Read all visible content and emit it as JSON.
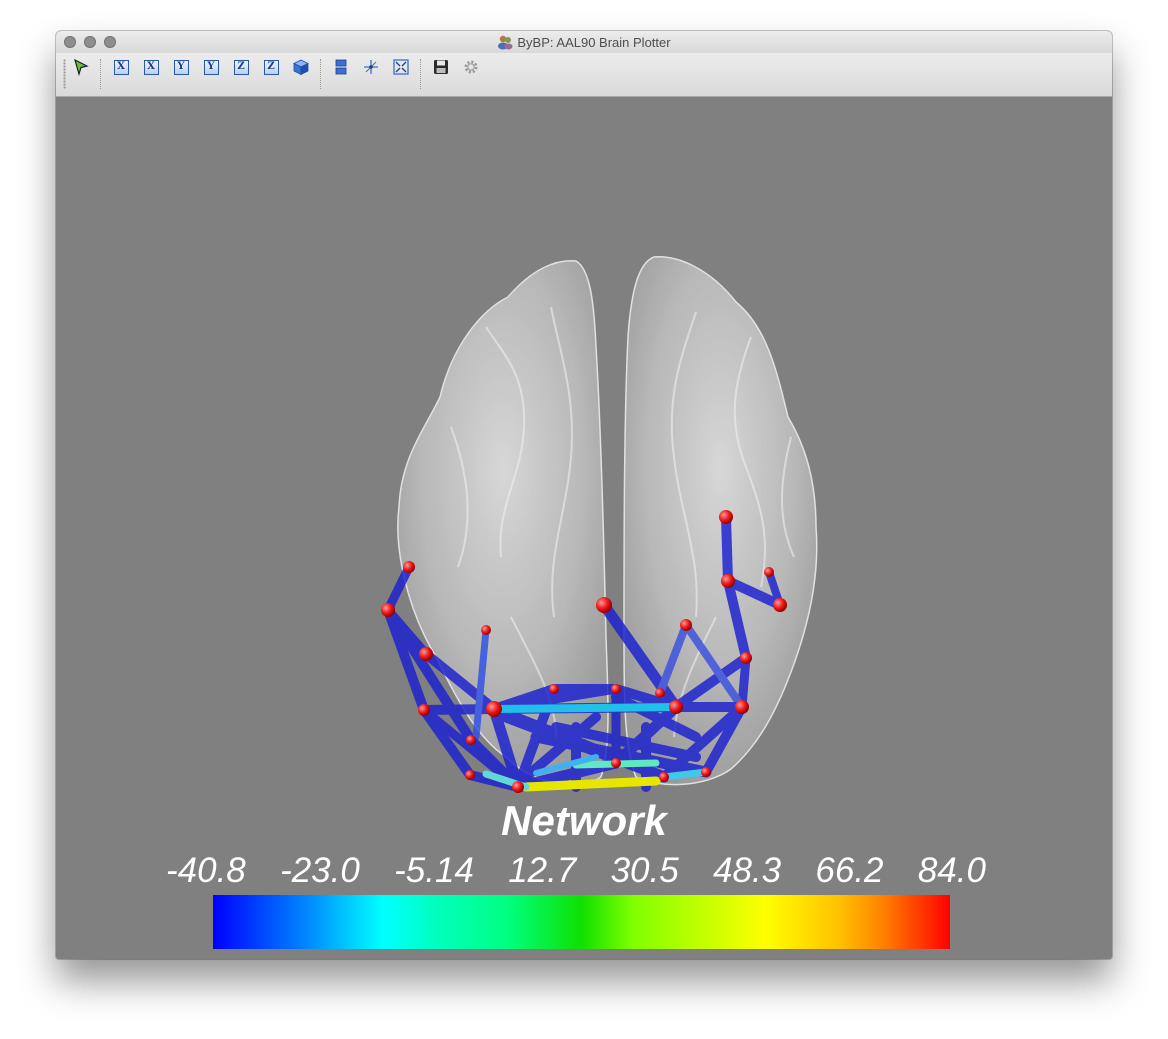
{
  "window": {
    "title": "ByBP: AAL90 Brain Plotter"
  },
  "toolbar": {
    "buttons": [
      {
        "name": "select-tool-icon",
        "label": ""
      },
      {
        "name": "view-x-pos-button",
        "label": "X"
      },
      {
        "name": "view-x-neg-button",
        "label": "X"
      },
      {
        "name": "view-y-pos-button",
        "label": "Y"
      },
      {
        "name": "view-y-neg-button",
        "label": "Y"
      },
      {
        "name": "view-z-pos-button",
        "label": "Z"
      },
      {
        "name": "view-z-neg-button",
        "label": "Z"
      },
      {
        "name": "view-3d-icon",
        "label": ""
      },
      {
        "name": "split-view-icon",
        "label": ""
      },
      {
        "name": "axes-icon",
        "label": ""
      },
      {
        "name": "fit-view-icon",
        "label": ""
      },
      {
        "name": "save-icon",
        "label": ""
      },
      {
        "name": "settings-icon",
        "label": ""
      }
    ]
  },
  "colorbar": {
    "title": "Network",
    "ticks": [
      "-40.8",
      "-23.0",
      "-5.14",
      "12.7",
      "30.5",
      "48.3",
      "66.2",
      "84.0"
    ],
    "range": [
      -40.8,
      84.0
    ],
    "colors": [
      "#0000ff",
      "#00ffff",
      "#00ff00",
      "#ffff00",
      "#ff0000"
    ]
  },
  "colors": {
    "background": "#808080",
    "node": "#ff2020",
    "edge": "#1a20d0"
  }
}
